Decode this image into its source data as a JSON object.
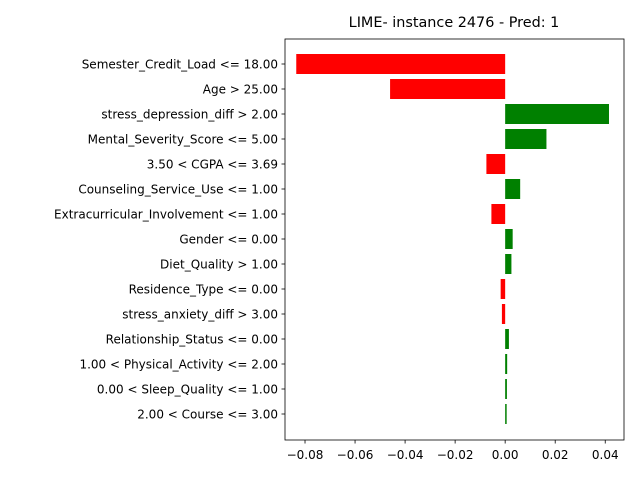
{
  "chart_data": {
    "type": "bar",
    "orientation": "horizontal",
    "title": "LIME- instance 2476 - Pred: 1",
    "xlabel": "",
    "ylabel": "",
    "categories": [
      "Semester_Credit_Load <= 18.00",
      "Age > 25.00",
      "stress_depression_diff > 2.00",
      "Mental_Severity_Score <= 5.00",
      "3.50 < CGPA <= 3.69",
      "Counseling_Service_Use <= 1.00",
      "Extracurricular_Involvement <= 1.00",
      "Gender <= 0.00",
      "Diet_Quality > 1.00",
      "Residence_Type <= 0.00",
      "stress_anxiety_diff > 3.00",
      "Relationship_Status <= 0.00",
      "1.00 < Physical_Activity <= 2.00",
      "0.00 < Sleep_Quality <= 1.00",
      "2.00 < Course <= 3.00"
    ],
    "values": [
      -0.0835,
      -0.046,
      0.0415,
      0.0165,
      -0.0075,
      0.006,
      -0.0055,
      0.003,
      0.0025,
      -0.0018,
      -0.0013,
      0.0015,
      0.0008,
      0.0007,
      0.0006
    ],
    "xlim": [
      -0.088,
      0.0475
    ],
    "xticks": [
      -0.08,
      -0.06,
      -0.04,
      -0.02,
      0.0,
      0.02,
      0.04
    ],
    "xtick_labels": [
      "−0.08",
      "−0.06",
      "−0.04",
      "−0.02",
      "0.00",
      "0.02",
      "0.04"
    ],
    "colors": {
      "positive": "#008000",
      "negative": "#ff0000",
      "axis": "#000000"
    },
    "grid": false,
    "legend": "none"
  }
}
